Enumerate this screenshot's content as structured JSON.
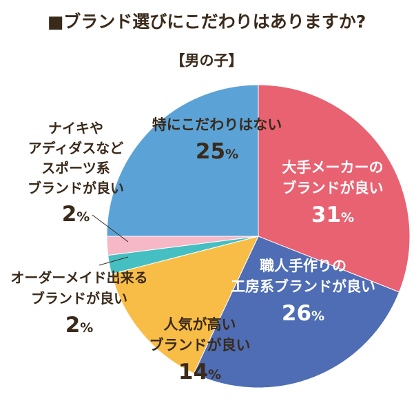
{
  "chart_data": {
    "type": "pie",
    "title": "■ブランド選びにこだわりはありますか?",
    "subtitle": "【男の子】",
    "slices": [
      {
        "label_lines": [
          "大手メーカーの",
          "ブランドが良い"
        ],
        "value": 31,
        "color": "#e86272",
        "label_color": "#ffffff"
      },
      {
        "label_lines": [
          "職人手作りの",
          "工房系ブランドが良い"
        ],
        "value": 26,
        "color": "#4e6db5",
        "label_color": "#ffffff"
      },
      {
        "label_lines": [
          "人気が高い",
          "ブランドが良い"
        ],
        "value": 14,
        "color": "#f8bd47",
        "label_color": "#3a2a1a"
      },
      {
        "label_lines": [
          "オーダーメイド出来る",
          "ブランドが良い"
        ],
        "value": 2,
        "color": "#45bfc2",
        "label_color": "#3a2a1a"
      },
      {
        "label_lines": [
          "ナイキや",
          "アディダスなど",
          "スポーツ系",
          "ブランドが良い"
        ],
        "value": 2,
        "color": "#f6b8c6",
        "label_color": "#3a2a1a"
      },
      {
        "label_lines": [
          "特にこだわりはない"
        ],
        "value": 25,
        "color": "#5ba3d7",
        "label_color": "#3a2a1a"
      }
    ],
    "value_suffix": "%",
    "legend": "none"
  }
}
